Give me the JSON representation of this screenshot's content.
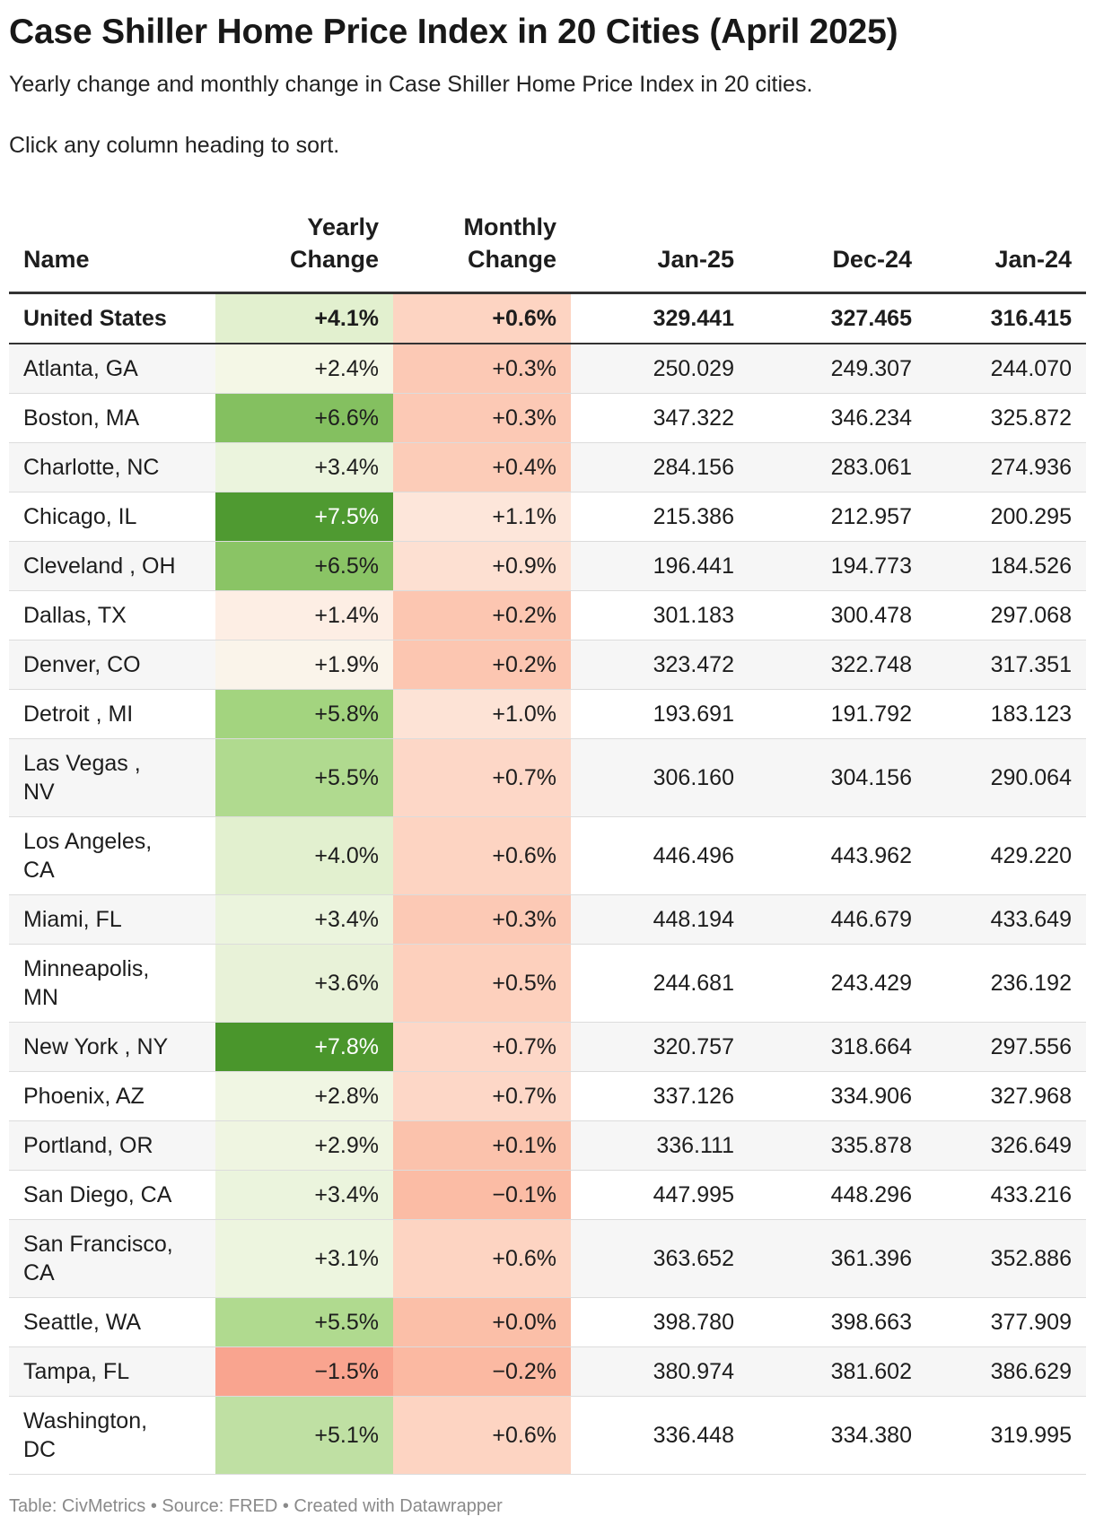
{
  "title": "Case Shiller Home Price Index in 20 Cities (April 2025)",
  "description": "Yearly change and monthly change in Case Shiller Home Price Index in 20 cities.",
  "hint": "Click any column heading to sort.",
  "columns": {
    "name": "Name",
    "yearly_line1": "Yearly",
    "yearly_line2": "Change",
    "monthly_line1": "Monthly",
    "monthly_line2": "Change",
    "jan25": "Jan-25",
    "dec24": "Dec-24",
    "jan24": "Jan-24"
  },
  "rows": [
    {
      "name": "United States",
      "yearly": "+4.1%",
      "monthly": "+0.6%",
      "jan25": "329.441",
      "dec24": "327.465",
      "jan24": "316.415",
      "yearly_color": "#e2f0cf",
      "monthly_color": "#fdd4c2"
    },
    {
      "name": "Atlanta, GA",
      "yearly": "+2.4%",
      "monthly": "+0.3%",
      "jan25": "250.029",
      "dec24": "249.307",
      "jan24": "244.070",
      "yearly_color": "#f4f7e6",
      "monthly_color": "#fcc9b5"
    },
    {
      "name": "Boston, MA",
      "yearly": "+6.6%",
      "monthly": "+0.3%",
      "jan25": "347.322",
      "dec24": "346.234",
      "jan24": "325.872",
      "yearly_color": "#84c060",
      "monthly_color": "#fcc9b5"
    },
    {
      "name": "Charlotte, NC",
      "yearly": "+3.4%",
      "monthly": "+0.4%",
      "jan25": "284.156",
      "dec24": "283.061",
      "jan24": "274.936",
      "yearly_color": "#ebf4dd",
      "monthly_color": "#fcccb8"
    },
    {
      "name": "Chicago, IL",
      "yearly": "+7.5%",
      "monthly": "+1.1%",
      "jan25": "215.386",
      "dec24": "212.957",
      "jan24": "200.295",
      "yearly_color": "#4f9a31",
      "monthly_color": "#fde6da",
      "yearly_light": true
    },
    {
      "name": "Cleveland , OH",
      "yearly": "+6.5%",
      "monthly": "+0.9%",
      "jan25": "196.441",
      "dec24": "194.773",
      "jan24": "184.526",
      "yearly_color": "#8ac465",
      "monthly_color": "#fde0d2"
    },
    {
      "name": "Dallas, TX",
      "yearly": "+1.4%",
      "monthly": "+0.2%",
      "jan25": "301.183",
      "dec24": "300.478",
      "jan24": "297.068",
      "yearly_color": "#fdeee4",
      "monthly_color": "#fcc6b1"
    },
    {
      "name": "Denver, CO",
      "yearly": "+1.9%",
      "monthly": "+0.2%",
      "jan25": "323.472",
      "dec24": "322.748",
      "jan24": "317.351",
      "yearly_color": "#faf4ea",
      "monthly_color": "#fcc6b1"
    },
    {
      "name": "Detroit , MI",
      "yearly": "+5.8%",
      "monthly": "+1.0%",
      "jan25": "193.691",
      "dec24": "191.792",
      "jan24": "183.123",
      "yearly_color": "#a3d47f",
      "monthly_color": "#fde3d6"
    },
    {
      "name": "Las Vegas , NV",
      "yearly": "+5.5%",
      "monthly": "+0.7%",
      "jan25": "306.160",
      "dec24": "304.156",
      "jan24": "290.064",
      "yearly_color": "#b0da8f",
      "monthly_color": "#fdd7c7"
    },
    {
      "name": "Los Angeles, CA",
      "yearly": "+4.0%",
      "monthly": "+0.6%",
      "jan25": "446.496",
      "dec24": "443.962",
      "jan24": "429.220",
      "yearly_color": "#e2f0cf",
      "monthly_color": "#fdd4c2"
    },
    {
      "name": "Miami, FL",
      "yearly": "+3.4%",
      "monthly": "+0.3%",
      "jan25": "448.194",
      "dec24": "446.679",
      "jan24": "433.649",
      "yearly_color": "#ebf4dd",
      "monthly_color": "#fcc9b5"
    },
    {
      "name": "Minneapolis, MN",
      "yearly": "+3.6%",
      "monthly": "+0.5%",
      "jan25": "244.681",
      "dec24": "243.429",
      "jan24": "236.192",
      "yearly_color": "#e8f2d8",
      "monthly_color": "#fdd0bd"
    },
    {
      "name": "New York , NY",
      "yearly": "+7.8%",
      "monthly": "+0.7%",
      "jan25": "320.757",
      "dec24": "318.664",
      "jan24": "297.556",
      "yearly_color": "#4a962c",
      "monthly_color": "#fdd7c7",
      "yearly_light": true
    },
    {
      "name": "Phoenix, AZ",
      "yearly": "+2.8%",
      "monthly": "+0.7%",
      "jan25": "337.126",
      "dec24": "334.906",
      "jan24": "327.968",
      "yearly_color": "#f0f6e3",
      "monthly_color": "#fdd7c7"
    },
    {
      "name": "Portland, OR",
      "yearly": "+2.9%",
      "monthly": "+0.1%",
      "jan25": "336.111",
      "dec24": "335.878",
      "jan24": "326.649",
      "yearly_color": "#eff5e1",
      "monthly_color": "#fbc2ac"
    },
    {
      "name": "San Diego, CA",
      "yearly": "+3.4%",
      "monthly": "−0.1%",
      "jan25": "447.995",
      "dec24": "448.296",
      "jan24": "433.216",
      "yearly_color": "#ebf4dd",
      "monthly_color": "#fbbca5"
    },
    {
      "name": "San Francisco, CA",
      "yearly": "+3.1%",
      "monthly": "+0.6%",
      "jan25": "363.652",
      "dec24": "361.396",
      "jan24": "352.886",
      "yearly_color": "#edf5df",
      "monthly_color": "#fdd4c2"
    },
    {
      "name": "Seattle, WA",
      "yearly": "+5.5%",
      "monthly": "+0.0%",
      "jan25": "398.780",
      "dec24": "398.663",
      "jan24": "377.909",
      "yearly_color": "#b0da8f",
      "monthly_color": "#fbbfa8"
    },
    {
      "name": "Tampa, FL",
      "yearly": "−1.5%",
      "monthly": "−0.2%",
      "jan25": "380.974",
      "dec24": "381.602",
      "jan24": "386.629",
      "yearly_color": "#f9a48f",
      "monthly_color": "#fbb9a2"
    },
    {
      "name": "Washington, DC",
      "yearly": "+5.1%",
      "monthly": "+0.6%",
      "jan25": "336.448",
      "dec24": "334.380",
      "jan24": "319.995",
      "yearly_color": "#bfe0a3",
      "monthly_color": "#fdd4c2"
    }
  ],
  "footer": "Table: CivMetrics • Source: FRED • Created with Datawrapper"
}
